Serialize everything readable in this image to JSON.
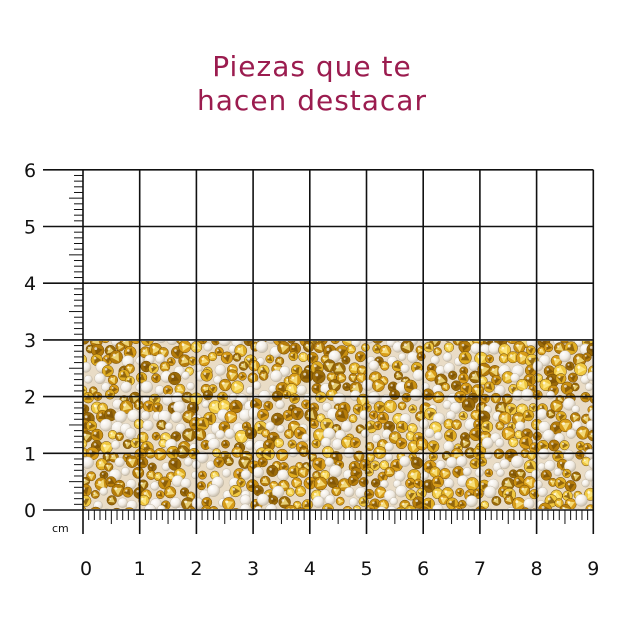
{
  "title": {
    "line1": "Piezas que te",
    "line2": "hacen destacar"
  },
  "ruler": {
    "unit_label": "cm",
    "x_labels": [
      "0",
      "1",
      "2",
      "3",
      "4",
      "5",
      "6",
      "7",
      "8",
      "9"
    ],
    "y_labels": [
      "0",
      "1",
      "2",
      "3",
      "4",
      "5",
      "6"
    ]
  },
  "product": {
    "width_cm": 9,
    "height_cm": 3,
    "colors": {
      "gold": "#d8a51e",
      "gold_dark": "#8a5e08",
      "gold_light": "#f6dd6a",
      "pearl": "#f1ece4",
      "base": "#e9dcc6"
    }
  },
  "colors": {
    "title": "#9b1c4f",
    "grid": "#111111"
  }
}
